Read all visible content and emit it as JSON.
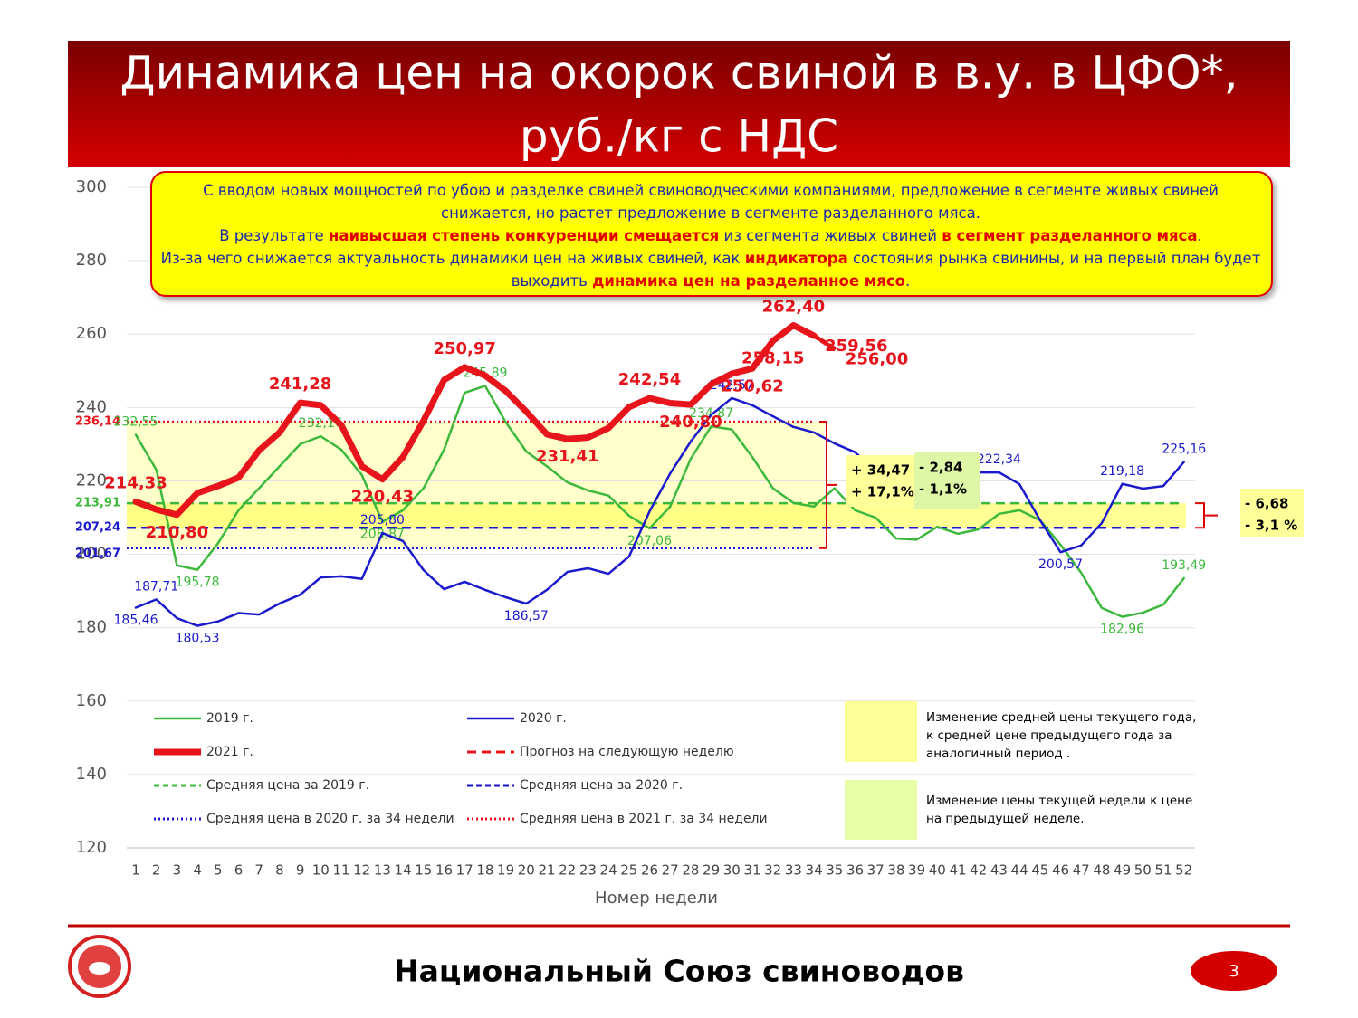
{
  "header": {
    "title_lines": [
      "Динамика цен на окорок свиной в в.у. в ЦФО*,",
      "руб./кг с НДС"
    ]
  },
  "info_box": {
    "lines": [
      [
        {
          "text": "С вводом новых мощностей по убою и разделке свиней свиноводческими компаниями, предложение в сегменте живых свиней",
          "emphasis": false
        }
      ],
      [
        {
          "text": "снижается, но растет предложение в сегменте разделанного мяса.",
          "emphasis": false
        }
      ],
      [
        {
          "text": "В результате ",
          "emphasis": false
        },
        {
          "text": "наивысшая степень конкуренции смещается",
          "emphasis": true
        },
        {
          "text": " из сегмента живых свиней ",
          "emphasis": false
        },
        {
          "text": "в сегмент разделанного мяса",
          "emphasis": true
        },
        {
          "text": ".",
          "emphasis": false
        }
      ],
      [
        {
          "text": "Из-за чего снижается актуальность динамики цен на живых свиней, как ",
          "emphasis": false
        },
        {
          "text": "индикатора",
          "emphasis": true
        },
        {
          "text": " состояния рынка свинины, и на первый план будет",
          "emphasis": false
        }
      ],
      [
        {
          "text": "выходить ",
          "emphasis": false
        },
        {
          "text": "динамика цен на разделанное мясо",
          "emphasis": true
        },
        {
          "text": ".",
          "emphasis": false
        }
      ]
    ]
  },
  "chart_data": {
    "type": "line",
    "x_label": "Номер недели",
    "categories": [
      "1",
      "2",
      "3",
      "4",
      "5",
      "6",
      "7",
      "8",
      "9",
      "10",
      "11",
      "12",
      "13",
      "14",
      "15",
      "16",
      "17",
      "18",
      "19",
      "20",
      "21",
      "22",
      "23",
      "24",
      "25",
      "26",
      "27",
      "28",
      "29",
      "30",
      "31",
      "32",
      "33",
      "34",
      "35",
      "36",
      "37",
      "38",
      "39",
      "40",
      "41",
      "42",
      "43",
      "44",
      "45",
      "46",
      "47",
      "48",
      "49",
      "50",
      "51",
      "52"
    ],
    "ylim": [
      120,
      300
    ],
    "yticks": [
      120,
      140,
      160,
      180,
      200,
      220,
      240,
      260,
      280,
      300
    ],
    "grid": true,
    "series": [
      {
        "name": "2019 г.",
        "color": "#3cb83c",
        "style": "solid",
        "width": 2.5,
        "values": [
          232.55,
          223,
          197,
          195.78,
          203,
          212,
          218,
          224,
          230,
          232.16,
          228.5,
          221.6,
          208.87,
          212,
          218,
          228.5,
          244,
          245.89,
          236,
          228,
          224,
          219.6,
          217.4,
          216,
          210.5,
          207.06,
          213,
          226,
          234.87,
          234,
          226.5,
          218,
          214,
          213,
          218,
          212,
          210,
          204.3,
          204,
          207.5,
          205.6,
          206.8,
          211,
          212,
          209.3,
          202.6,
          195,
          185.4,
          182.96,
          184.1,
          186.3,
          193.49
        ],
        "value_labels": [
          "232,55",
          null,
          null,
          "195,78",
          null,
          null,
          null,
          null,
          null,
          "232,16",
          null,
          null,
          "208,87",
          null,
          null,
          null,
          null,
          "245,89",
          null,
          null,
          null,
          null,
          null,
          null,
          null,
          "207,06",
          null,
          null,
          "234,87",
          null,
          null,
          null,
          null,
          null,
          null,
          null,
          null,
          null,
          null,
          null,
          null,
          null,
          null,
          null,
          null,
          null,
          null,
          null,
          "182,96",
          null,
          null,
          "193,49"
        ]
      },
      {
        "name": "2020 г.",
        "color": "#1a1acc",
        "style": "solid",
        "width": 2.5,
        "values": [
          185.46,
          187.71,
          182.6,
          180.53,
          181.7,
          184,
          183.6,
          186.6,
          189,
          193.7,
          194,
          193.3,
          205.8,
          203.6,
          195.7,
          190.5,
          192.5,
          190.3,
          188.3,
          186.57,
          190.3,
          195.2,
          196.2,
          194.7,
          199.4,
          211.7,
          222,
          230.7,
          238,
          242.57,
          240.6,
          237.6,
          234.7,
          233.2,
          230.2,
          227.8,
          222.8,
          220.4,
          219.1,
          217.9,
          220.9,
          222.3,
          222.34,
          219.1,
          209.3,
          200.57,
          202.4,
          208.5,
          219.18,
          217.9,
          218.6,
          225.16
        ],
        "value_labels": [
          "185,46",
          "187,71",
          null,
          "180,53",
          null,
          null,
          null,
          null,
          null,
          null,
          null,
          null,
          "205,80",
          null,
          null,
          null,
          null,
          null,
          null,
          "186,57",
          null,
          null,
          null,
          null,
          null,
          null,
          null,
          null,
          null,
          "242,57",
          null,
          null,
          null,
          null,
          null,
          null,
          null,
          null,
          null,
          null,
          null,
          null,
          "222,34",
          null,
          null,
          "200,57",
          null,
          null,
          "219,18",
          null,
          null,
          "225,16"
        ]
      },
      {
        "name": "2021 г.",
        "color": "#e8141c",
        "style": "solid",
        "width": 7,
        "values": [
          214.33,
          212.2,
          210.8,
          216.7,
          218.6,
          220.9,
          228.3,
          233.2,
          241.28,
          240.6,
          235.2,
          224,
          220.43,
          226.5,
          236.4,
          247.5,
          250.97,
          248.7,
          244.5,
          238.9,
          232.7,
          231.41,
          231.8,
          234.4,
          240.1,
          242.54,
          241.2,
          240.8,
          246.3,
          249.2,
          250.62,
          258.15,
          262.4,
          259.56,
          null,
          null,
          null,
          null,
          null,
          null,
          null,
          null,
          null,
          null,
          null,
          null,
          null,
          null,
          null,
          null,
          null,
          null
        ],
        "value_labels": [
          "214,33",
          null,
          "210,80",
          null,
          null,
          null,
          null,
          null,
          "241,28",
          null,
          null,
          null,
          "220,43",
          null,
          null,
          null,
          "250,97",
          null,
          null,
          null,
          null,
          "231,41",
          null,
          null,
          null,
          "242,54",
          null,
          "240,80",
          null,
          null,
          "250,62",
          "258,15",
          "262,40",
          "259,56",
          null,
          null,
          null,
          null,
          null,
          null,
          null,
          null,
          null,
          null,
          null,
          null,
          null,
          null,
          null,
          null,
          null,
          null
        ]
      },
      {
        "name": "Прогноз на следующую неделю",
        "color": "#e8141c",
        "style": "dashed",
        "width": 5,
        "values": [
          null,
          null,
          null,
          null,
          null,
          null,
          null,
          null,
          null,
          null,
          null,
          null,
          null,
          null,
          null,
          null,
          null,
          null,
          null,
          null,
          null,
          null,
          null,
          null,
          null,
          null,
          null,
          null,
          null,
          null,
          null,
          null,
          null,
          259.56,
          256,
          null,
          null,
          null,
          null,
          null,
          null,
          null,
          null,
          null,
          null,
          null,
          null,
          null,
          null,
          null,
          null,
          null
        ],
        "value_labels": [
          null,
          null,
          null,
          null,
          null,
          null,
          null,
          null,
          null,
          null,
          null,
          null,
          null,
          null,
          null,
          null,
          null,
          null,
          null,
          null,
          null,
          null,
          null,
          null,
          null,
          null,
          null,
          null,
          null,
          null,
          null,
          null,
          null,
          null,
          "256,00",
          null,
          null,
          null,
          null,
          null,
          null,
          null,
          null,
          null,
          null,
          null,
          null,
          null,
          null,
          null,
          null,
          null
        ]
      }
    ],
    "reference_lines": [
      {
        "name": "Средняя цена за 2019 г.",
        "value": 213.91,
        "label": "213,91",
        "color": "#3cb83c",
        "style": "dashed",
        "x_range": [
          1,
          52
        ]
      },
      {
        "name": "Средняя цена за 2020 г.",
        "value": 207.24,
        "label": "207,24",
        "color": "#1a1acc",
        "style": "dashed",
        "x_range": [
          1,
          52
        ]
      },
      {
        "name": "Средняя цена в 2020 г. за 34 недели",
        "value": 201.67,
        "label": "201,67",
        "color": "#1a1acc",
        "style": "dotted",
        "x_range": [
          1,
          34
        ]
      },
      {
        "name": "Средняя цена в 2021 г. за 34 недели",
        "value": 236.14,
        "label": "236,14",
        "color": "#e8141c",
        "style": "dotted",
        "x_range": [
          1,
          34
        ]
      }
    ],
    "annotations": [
      {
        "lines": [
          "+ 34,47",
          "+ 17,1%"
        ],
        "color": "#ffff99"
      },
      {
        "lines": [
          "- 2,84",
          "- 1,1%"
        ],
        "color": "#def7a6"
      },
      {
        "lines": [
          "- 6,68",
          "- 3,1 %"
        ],
        "color": "#ffff99"
      }
    ],
    "legend_notes": [
      {
        "color": "#ffff99",
        "lines": [
          "Изменение средней цены текущего года,",
          "к средней цене предыдущего года за",
          "аналогичный период ."
        ]
      },
      {
        "color": "#e6ffa6",
        "lines": [
          "Изменение цены текущей недели к цене",
          "на предыдущей неделе."
        ]
      }
    ]
  },
  "footer": {
    "organization": "Национальный Союз свиноводов",
    "page": "3"
  }
}
